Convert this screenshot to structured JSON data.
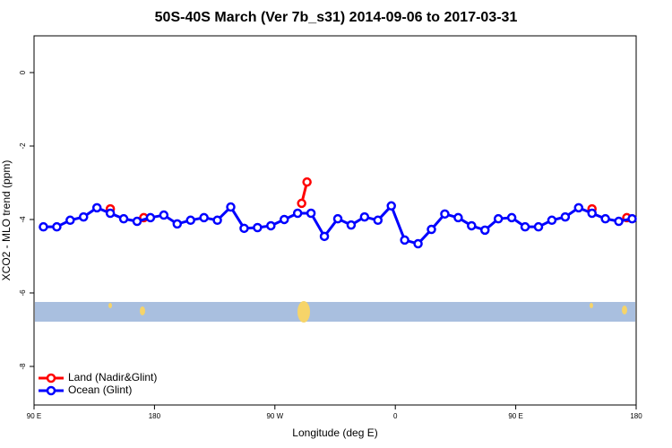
{
  "chart_data": {
    "type": "line",
    "title": "50S-40S March (Ver 7b_s31)   2014-09-06 to 2017-03-31",
    "x_label": "Longitude (deg E)",
    "y_label": "XCO2 - MLO trend (ppm)",
    "xlim": [
      90,
      540
    ],
    "xticks": [
      {
        "value": 90,
        "label": "90 E"
      },
      {
        "value": 180,
        "label": "180"
      },
      {
        "value": 270,
        "label": "90 W"
      },
      {
        "value": 360,
        "label": "0"
      },
      {
        "value": 450,
        "label": "90 E"
      },
      {
        "value": 540,
        "label": "180"
      }
    ],
    "ylim": [
      -9.05,
      1.0
    ],
    "yticks": [
      0,
      -2,
      -4,
      -6,
      -8
    ],
    "legend": "bottom-left",
    "series": [
      {
        "name": "Land (Nadir&Glint)",
        "color": "#ff0000",
        "x": [
          147,
          null,
          172,
          null,
          290,
          294,
          null,
          507,
          null,
          533
        ],
        "values": [
          -3.71,
          null,
          -3.95,
          null,
          -3.56,
          -2.98,
          null,
          -3.71,
          null,
          -3.95
        ]
      },
      {
        "name": "Ocean (Glint)",
        "color": "#0000ff",
        "x": [
          97,
          107,
          117,
          127,
          137,
          147,
          157,
          167,
          177,
          187,
          197,
          207,
          217,
          227,
          237,
          247,
          257,
          267,
          277,
          287,
          297,
          307,
          317,
          327,
          337,
          347,
          357,
          367,
          377,
          387,
          397,
          407,
          417,
          427,
          437,
          447,
          457,
          467,
          477,
          487,
          497,
          507,
          517,
          527,
          537
        ],
        "values": [
          -4.2,
          -4.2,
          -4.02,
          -3.93,
          -3.68,
          -3.83,
          -3.98,
          -4.05,
          -3.95,
          -3.88,
          -4.12,
          -4.02,
          -3.95,
          -4.02,
          -3.66,
          -4.24,
          -4.22,
          -4.17,
          -4.0,
          -3.83,
          -3.83,
          -4.46,
          -3.98,
          -4.15,
          -3.93,
          -4.02,
          -3.63,
          -4.56,
          -4.66,
          -4.27,
          -3.85,
          -3.95,
          -4.17,
          -4.29,
          -3.98,
          -3.95,
          -4.2,
          -4.2,
          -4.02,
          -3.93,
          -3.68,
          -3.83,
          -3.98,
          -4.05,
          -3.98
        ]
      }
    ]
  }
}
